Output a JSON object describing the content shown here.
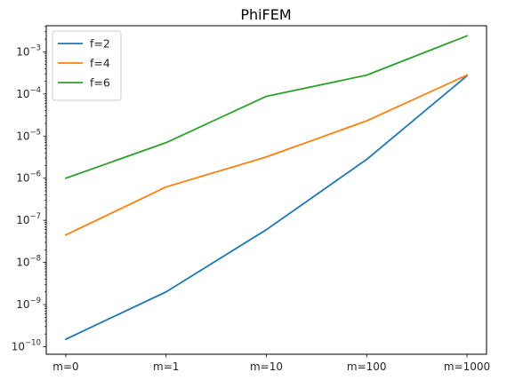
{
  "chart_data": {
    "type": "line",
    "title": "PhiFEM",
    "xlabel": "",
    "ylabel": "",
    "categories": [
      "m=0",
      "m=1",
      "m=10",
      "m=100",
      "m=1000"
    ],
    "yscale": "log",
    "ylim": [
      1e-10,
      0.005
    ],
    "yticks": [
      {
        "exp": -10,
        "label": "10",
        "sup": "−10"
      },
      {
        "exp": -9,
        "label": "10",
        "sup": "−9"
      },
      {
        "exp": -8,
        "label": "10",
        "sup": "−8"
      },
      {
        "exp": -7,
        "label": "10",
        "sup": "−7"
      },
      {
        "exp": -6,
        "label": "10",
        "sup": "−6"
      },
      {
        "exp": -5,
        "label": "10",
        "sup": "−5"
      },
      {
        "exp": -4,
        "label": "10",
        "sup": "−4"
      },
      {
        "exp": -3,
        "label": "10",
        "sup": "−3"
      }
    ],
    "grid": false,
    "legend_position": "top-left",
    "series": [
      {
        "name": "f=2",
        "color": "#1f77b4",
        "values": [
          1.5e-10,
          2e-09,
          6e-08,
          2.8e-06,
          0.00027
        ]
      },
      {
        "name": "f=4",
        "color": "#ff7f0e",
        "values": [
          4.5e-08,
          6.2e-07,
          3.2e-06,
          2.3e-05,
          0.00028
        ]
      },
      {
        "name": "f=6",
        "color": "#2ca02c",
        "values": [
          1e-06,
          7e-06,
          8.8e-05,
          0.00028,
          0.0024
        ]
      }
    ]
  }
}
